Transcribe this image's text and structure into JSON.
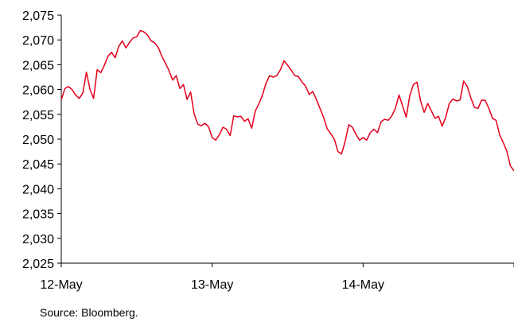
{
  "source_note": "Source: Bloomberg.",
  "chart_data": {
    "type": "line",
    "title": "",
    "xlabel": "",
    "ylabel": "",
    "ylim": [
      2025,
      2075
    ],
    "y_ticks": [
      2025,
      2030,
      2035,
      2040,
      2045,
      2050,
      2055,
      2060,
      2065,
      2070,
      2075
    ],
    "y_tick_labels": [
      "2,025",
      "2,030",
      "2,035",
      "2,040",
      "2,045",
      "2,050",
      "2,055",
      "2,060",
      "2,065",
      "2,070",
      "2,075"
    ],
    "x_tick_labels": [
      "12-May",
      "13-May",
      "14-May"
    ],
    "grid": false,
    "legend": "none",
    "series": [
      {
        "color": "#e3001b",
        "values": [
          2057.9,
          2060.2,
          2060.6,
          2060.0,
          2058.9,
          2058.2,
          2059.3,
          2063.5,
          2060.0,
          2058.2,
          2064.0,
          2063.4,
          2064.9,
          2066.7,
          2067.5,
          2066.4,
          2068.7,
          2069.8,
          2068.4,
          2069.5,
          2070.4,
          2070.6,
          2071.9,
          2071.6,
          2071.0,
          2069.8,
          2069.4,
          2068.5,
          2066.7,
          2065.3,
          2063.8,
          2061.9,
          2062.8,
          2060.2,
          2061.0,
          2058.0,
          2059.5,
          2055.0,
          2053.0,
          2052.7,
          2053.2,
          2052.5,
          2050.3,
          2049.8,
          2050.9,
          2052.4,
          2052.0,
          2050.7,
          2054.7,
          2054.5,
          2054.6,
          2053.6,
          2054.1,
          2052.2,
          2055.7,
          2057.1,
          2058.9,
          2061.3,
          2062.8,
          2062.5,
          2062.8,
          2064.0,
          2065.8,
          2064.9,
          2063.9,
          2062.8,
          2062.6,
          2061.5,
          2060.7,
          2059.0,
          2059.6,
          2058.0,
          2056.2,
          2054.4,
          2052.1,
          2051.1,
          2050.0,
          2047.5,
          2047.0,
          2049.5,
          2052.9,
          2052.4,
          2051.0,
          2049.8,
          2050.3,
          2049.8,
          2051.3,
          2052.0,
          2051.3,
          2053.5,
          2054.0,
          2053.8,
          2054.7,
          2056.2,
          2058.9,
          2056.7,
          2054.4,
          2058.8,
          2061.0,
          2061.5,
          2057.7,
          2055.4,
          2057.2,
          2055.7,
          2054.2,
          2054.6,
          2052.6,
          2054.4,
          2057.2,
          2058.1,
          2057.7,
          2057.9,
          2061.7,
          2060.6,
          2058.3,
          2056.4,
          2056.2,
          2057.9,
          2057.8,
          2056.2,
          2054.2,
          2053.8,
          2050.9,
          2049.3,
          2047.6,
          2044.6,
          2043.6
        ]
      }
    ]
  }
}
